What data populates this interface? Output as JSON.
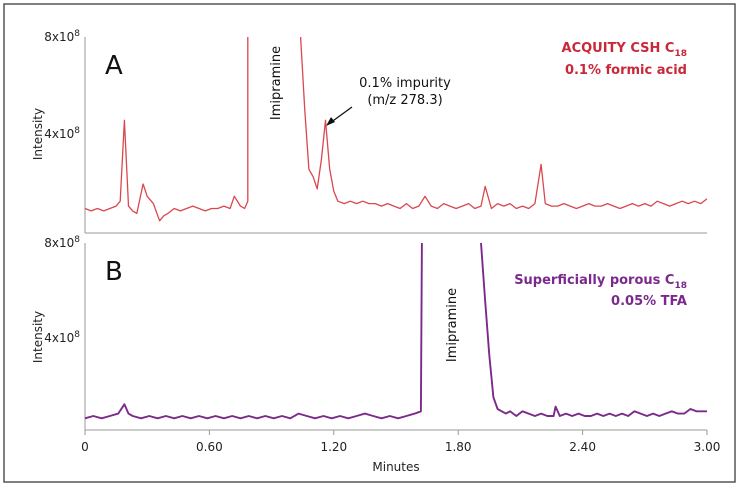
{
  "chart_data": [
    {
      "type": "line",
      "panel_label": "A",
      "column_label": "ACQUITY CSH C",
      "column_sub": "18",
      "mobile_phase": "0.1% formic acid",
      "ylabel": "Intensity",
      "ytick_labels": {
        "top": {
          "base": "8x10",
          "exp": "8"
        },
        "mid": {
          "base": "4x10",
          "exp": "8"
        }
      },
      "ytick_values": [
        400000000.0,
        800000000.0
      ],
      "xlim": [
        0,
        3.0
      ],
      "ylim": [
        0,
        800000000.0
      ],
      "color": "#d9484e",
      "peak_label": "Imipramine",
      "annotation_line1": "0.1% impurity",
      "annotation_line2": "(m/z 278.3)",
      "series": [
        {
          "x": [
            0.0,
            0.03,
            0.06,
            0.09,
            0.12,
            0.15,
            0.17,
            0.19,
            0.21,
            0.23,
            0.25,
            0.28,
            0.3,
            0.33,
            0.36,
            0.38,
            0.4,
            0.43,
            0.46,
            0.49,
            0.52,
            0.55,
            0.58,
            0.61,
            0.64,
            0.67,
            0.7,
            0.72,
            0.75,
            0.77,
            0.785,
            0.785
          ],
          "y": [
            100000000.0,
            90000000.0,
            100000000.0,
            90000000.0,
            100000000.0,
            110000000.0,
            130000000.0,
            460000000.0,
            110000000.0,
            90000000.0,
            80000000.0,
            200000000.0,
            150000000.0,
            120000000.0,
            50000000.0,
            70000000.0,
            80000000.0,
            100000000.0,
            90000000.0,
            100000000.0,
            110000000.0,
            100000000.0,
            90000000.0,
            100000000.0,
            100000000.0,
            110000000.0,
            100000000.0,
            150000000.0,
            110000000.0,
            100000000.0,
            130000000.0,
            800000000.0
          ]
        },
        {
          "x": [
            1.04,
            1.06,
            1.08,
            1.1,
            1.12,
            1.14,
            1.16,
            1.18,
            1.2,
            1.22,
            1.25,
            1.28,
            1.31,
            1.34,
            1.37,
            1.4,
            1.43,
            1.46,
            1.49,
            1.52,
            1.55,
            1.58,
            1.61,
            1.64,
            1.67,
            1.7,
            1.73,
            1.76,
            1.79,
            1.82,
            1.85,
            1.88,
            1.91,
            1.93,
            1.96,
            1.99,
            2.02,
            2.05,
            2.08,
            2.11,
            2.14,
            2.17,
            2.2,
            2.22,
            2.25,
            2.28,
            2.31,
            2.34,
            2.37,
            2.4,
            2.43,
            2.46,
            2.49,
            2.52,
            2.55,
            2.58,
            2.61,
            2.64,
            2.67,
            2.7,
            2.73,
            2.76,
            2.79,
            2.82,
            2.85,
            2.88,
            2.91,
            2.94,
            2.97,
            3.0
          ],
          "y": [
            800000000.0,
            500000000.0,
            260000000.0,
            230000000.0,
            180000000.0,
            300000000.0,
            460000000.0,
            260000000.0,
            170000000.0,
            130000000.0,
            120000000.0,
            130000000.0,
            120000000.0,
            130000000.0,
            120000000.0,
            120000000.0,
            110000000.0,
            120000000.0,
            110000000.0,
            100000000.0,
            120000000.0,
            100000000.0,
            110000000.0,
            150000000.0,
            110000000.0,
            100000000.0,
            120000000.0,
            110000000.0,
            100000000.0,
            110000000.0,
            120000000.0,
            100000000.0,
            110000000.0,
            190000000.0,
            100000000.0,
            120000000.0,
            110000000.0,
            120000000.0,
            100000000.0,
            110000000.0,
            100000000.0,
            120000000.0,
            280000000.0,
            120000000.0,
            110000000.0,
            110000000.0,
            120000000.0,
            110000000.0,
            100000000.0,
            110000000.0,
            120000000.0,
            110000000.0,
            110000000.0,
            120000000.0,
            110000000.0,
            100000000.0,
            110000000.0,
            120000000.0,
            110000000.0,
            120000000.0,
            110000000.0,
            130000000.0,
            120000000.0,
            110000000.0,
            120000000.0,
            130000000.0,
            120000000.0,
            130000000.0,
            120000000.0,
            140000000.0
          ]
        }
      ]
    },
    {
      "type": "line",
      "panel_label": "B",
      "column_label": "Superficially porous C",
      "column_sub": "18",
      "mobile_phase": "0.05% TFA",
      "ylabel": "Intensity",
      "ytick_labels": {
        "top": {
          "base": "8x10",
          "exp": "8"
        },
        "mid": {
          "base": "4x10",
          "exp": "8"
        }
      },
      "ytick_values": [
        400000000.0,
        800000000.0
      ],
      "xlim": [
        0,
        3.0
      ],
      "ylim": [
        0,
        800000000.0
      ],
      "color": "#7b2a8c",
      "peak_label": "Imipramine",
      "xlabel": "Minutes",
      "xtick_labels": [
        "0",
        "0.60",
        "1.20",
        "1.80",
        "2.40",
        "3.00"
      ],
      "xtick_values": [
        0,
        0.6,
        1.2,
        1.8,
        2.4,
        3.0
      ],
      "series": [
        {
          "x": [
            0.0,
            0.04,
            0.08,
            0.12,
            0.16,
            0.19,
            0.21,
            0.23,
            0.27,
            0.31,
            0.35,
            0.39,
            0.43,
            0.47,
            0.51,
            0.55,
            0.59,
            0.63,
            0.67,
            0.71,
            0.75,
            0.79,
            0.83,
            0.87,
            0.91,
            0.95,
            0.99,
            1.03,
            1.07,
            1.11,
            1.15,
            1.19,
            1.23,
            1.27,
            1.31,
            1.35,
            1.39,
            1.43,
            1.47,
            1.51,
            1.55,
            1.59,
            1.62,
            1.625
          ],
          "y": [
            50000000.0,
            60000000.0,
            50000000.0,
            60000000.0,
            70000000.0,
            110000000.0,
            70000000.0,
            60000000.0,
            50000000.0,
            60000000.0,
            50000000.0,
            60000000.0,
            50000000.0,
            60000000.0,
            50000000.0,
            60000000.0,
            50000000.0,
            60000000.0,
            50000000.0,
            60000000.0,
            50000000.0,
            60000000.0,
            50000000.0,
            60000000.0,
            50000000.0,
            60000000.0,
            50000000.0,
            70000000.0,
            60000000.0,
            50000000.0,
            60000000.0,
            50000000.0,
            60000000.0,
            50000000.0,
            60000000.0,
            70000000.0,
            60000000.0,
            50000000.0,
            60000000.0,
            50000000.0,
            60000000.0,
            70000000.0,
            80000000.0,
            800000000.0
          ]
        },
        {
          "x": [
            1.91,
            1.93,
            1.95,
            1.97,
            1.99,
            2.01,
            2.03,
            2.05,
            2.08,
            2.11,
            2.14,
            2.17,
            2.2,
            2.23,
            2.26,
            2.27,
            2.29,
            2.32,
            2.35,
            2.38,
            2.41,
            2.44,
            2.47,
            2.5,
            2.53,
            2.56,
            2.59,
            2.62,
            2.65,
            2.68,
            2.71,
            2.74,
            2.77,
            2.8,
            2.83,
            2.86,
            2.89,
            2.92,
            2.95,
            2.98,
            3.0
          ],
          "y": [
            800000000.0,
            550000000.0,
            320000000.0,
            140000000.0,
            90000000.0,
            80000000.0,
            70000000.0,
            80000000.0,
            60000000.0,
            80000000.0,
            70000000.0,
            60000000.0,
            70000000.0,
            60000000.0,
            60000000.0,
            100000000.0,
            60000000.0,
            70000000.0,
            60000000.0,
            70000000.0,
            60000000.0,
            60000000.0,
            70000000.0,
            60000000.0,
            70000000.0,
            60000000.0,
            70000000.0,
            60000000.0,
            80000000.0,
            70000000.0,
            60000000.0,
            70000000.0,
            60000000.0,
            70000000.0,
            80000000.0,
            70000000.0,
            70000000.0,
            90000000.0,
            80000000.0,
            80000000.0,
            80000000.0
          ]
        }
      ]
    }
  ]
}
